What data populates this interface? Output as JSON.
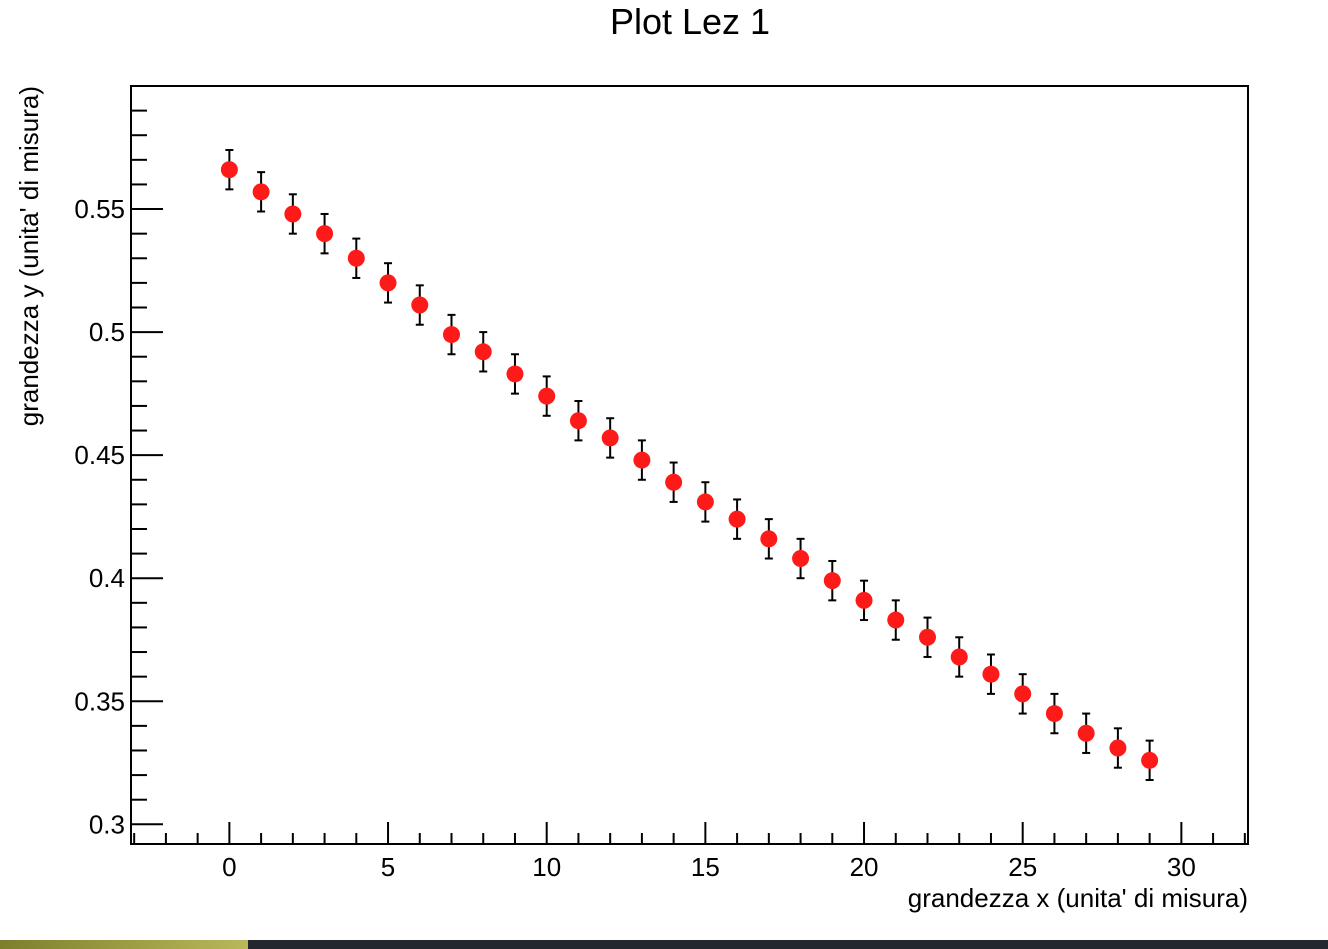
{
  "chart_data": {
    "type": "scatter",
    "title": "Plot Lez 1",
    "xlabel": "grandezza x (unita' di misura)",
    "ylabel": "grandezza y (unita' di misura)",
    "xlim": [
      -3.1,
      32.1
    ],
    "ylim": [
      0.292,
      0.6
    ],
    "x_ticks": [
      0,
      5,
      10,
      15,
      20,
      25,
      30
    ],
    "x_tick_labels": [
      "0",
      "5",
      "10",
      "15",
      "20",
      "25",
      "30"
    ],
    "y_ticks": [
      0.3,
      0.35,
      0.4,
      0.45,
      0.5,
      0.55
    ],
    "y_tick_labels": [
      "0.3",
      "0.35",
      "0.4",
      "0.45",
      "0.5",
      "0.55"
    ],
    "grid": false,
    "marker_color": "#ff1a1a",
    "error_bar_color": "#000000",
    "series": [
      {
        "x": [
          0,
          1,
          2,
          3,
          4,
          5,
          6,
          7,
          8,
          9,
          10,
          11,
          12,
          13,
          14,
          15,
          16,
          17,
          18,
          19,
          20,
          21,
          22,
          23,
          24,
          25,
          26,
          27,
          28,
          29
        ],
        "y": [
          0.566,
          0.557,
          0.548,
          0.54,
          0.53,
          0.52,
          0.511,
          0.499,
          0.492,
          0.483,
          0.474,
          0.464,
          0.457,
          0.448,
          0.439,
          0.431,
          0.424,
          0.416,
          0.408,
          0.399,
          0.391,
          0.383,
          0.376,
          0.368,
          0.361,
          0.353,
          0.345,
          0.337,
          0.331,
          0.326
        ],
        "y_err": [
          0.008,
          0.008,
          0.008,
          0.008,
          0.008,
          0.008,
          0.008,
          0.008,
          0.008,
          0.008,
          0.008,
          0.008,
          0.008,
          0.008,
          0.008,
          0.008,
          0.008,
          0.008,
          0.008,
          0.008,
          0.008,
          0.008,
          0.008,
          0.008,
          0.008,
          0.008,
          0.008,
          0.008,
          0.008,
          0.008
        ]
      }
    ]
  }
}
